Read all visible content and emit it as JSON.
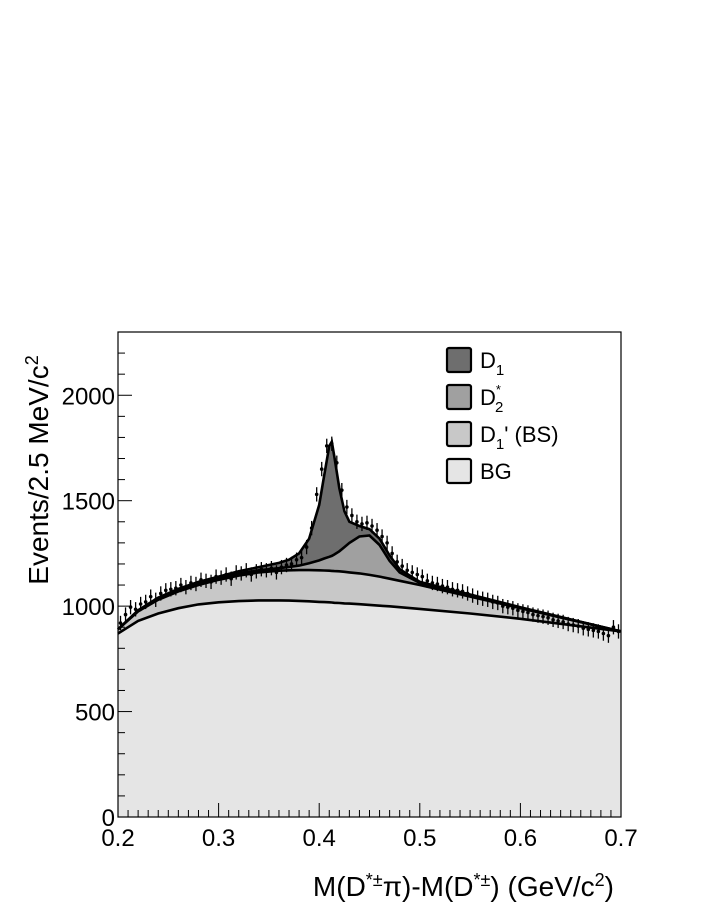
{
  "chart_data": {
    "type": "area",
    "title": "",
    "xlabel": {
      "main": "M(D",
      "sup1": "*±",
      "mid": "π)-M(D",
      "sup2": "*±",
      "end": ") (GeV/c",
      "sup3": "2",
      "close": ")"
    },
    "ylabel": {
      "main": "Events/2.5 MeV/c",
      "sup": "2"
    },
    "xlim": [
      0.2,
      0.7
    ],
    "ylim": [
      0,
      2300
    ],
    "x_ticks": [
      "0.2",
      "0.3",
      "0.4",
      "0.5",
      "0.6",
      "0.7"
    ],
    "y_ticks": [
      "0",
      "500",
      "1000",
      "1500",
      "2000"
    ],
    "x": [
      0.2,
      0.22,
      0.24,
      0.26,
      0.28,
      0.3,
      0.32,
      0.34,
      0.36,
      0.37,
      0.38,
      0.39,
      0.4,
      0.405,
      0.41,
      0.4125,
      0.415,
      0.42,
      0.425,
      0.43,
      0.44,
      0.45,
      0.46,
      0.47,
      0.48,
      0.5,
      0.55,
      0.6,
      0.65,
      0.7
    ],
    "series": [
      {
        "name": "BG",
        "color": "#e5e5e5",
        "values": [
          870,
          930,
          965,
          990,
          1008,
          1018,
          1024,
          1027,
          1027,
          1026,
          1025,
          1023,
          1020,
          1019,
          1018,
          1017,
          1016,
          1015,
          1013,
          1012,
          1009,
          1006,
          1002,
          999,
          995,
          987,
          965,
          940,
          910,
          880
        ]
      },
      {
        "name": "D1' (BS)",
        "color": "#c8c8c8",
        "values": [
          890,
          975,
          1030,
          1070,
          1100,
          1125,
          1145,
          1160,
          1168,
          1170,
          1171,
          1171,
          1170,
          1169,
          1168,
          1167,
          1166,
          1165,
          1163,
          1160,
          1155,
          1148,
          1140,
          1130,
          1120,
          1100,
          1045,
          990,
          935,
          880
        ]
      },
      {
        "name": "D2*",
        "color": "#a0a0a0",
        "values": [
          890,
          978,
          1035,
          1076,
          1107,
          1132,
          1154,
          1170,
          1180,
          1186,
          1192,
          1203,
          1217,
          1226,
          1234,
          1238,
          1245,
          1260,
          1280,
          1300,
          1330,
          1335,
          1290,
          1215,
          1160,
          1110,
          1050,
          993,
          936,
          880
        ]
      },
      {
        "name": "D1",
        "color": "#6e6e6e",
        "values": [
          890,
          980,
          1040,
          1082,
          1115,
          1140,
          1165,
          1185,
          1205,
          1220,
          1250,
          1320,
          1480,
          1620,
          1760,
          1780,
          1710,
          1560,
          1450,
          1400,
          1380,
          1365,
          1320,
          1240,
          1175,
          1115,
          1055,
          995,
          937,
          880
        ]
      }
    ],
    "legend": {
      "position": "top-right",
      "entries": [
        {
          "label": "D",
          "sub": "1",
          "sup": "",
          "rest": "",
          "color": "#6e6e6e"
        },
        {
          "label": "D",
          "sub": "2",
          "sup": "*",
          "rest": "",
          "color": "#a0a0a0"
        },
        {
          "label": "D",
          "sub": "1",
          "sup": "",
          "rest": "' (BS)",
          "color": "#c8c8c8"
        },
        {
          "label": "BG",
          "sub": "",
          "sup": "",
          "rest": "",
          "color": "#e5e5e5"
        }
      ]
    },
    "data_points_description": "",
    "data_points": {
      "x": [
        0.2025,
        0.2075,
        0.2125,
        0.2175,
        0.2225,
        0.2275,
        0.2325,
        0.2375,
        0.2425,
        0.2475,
        0.2525,
        0.2575,
        0.2625,
        0.2675,
        0.2725,
        0.2775,
        0.2825,
        0.2875,
        0.2925,
        0.2975,
        0.3025,
        0.3075,
        0.3125,
        0.3175,
        0.3225,
        0.3275,
        0.3325,
        0.3375,
        0.3425,
        0.3475,
        0.3525,
        0.3575,
        0.3625,
        0.3675,
        0.3725,
        0.3775,
        0.3825,
        0.3875,
        0.3925,
        0.3975,
        0.4025,
        0.4075,
        0.4125,
        0.4175,
        0.4225,
        0.4275,
        0.4325,
        0.4375,
        0.4425,
        0.4475,
        0.4525,
        0.4575,
        0.4625,
        0.4675,
        0.4725,
        0.4775,
        0.4825,
        0.4875,
        0.4925,
        0.4975,
        0.5025,
        0.5075,
        0.5125,
        0.5175,
        0.5225,
        0.5275,
        0.5325,
        0.5375,
        0.5425,
        0.5475,
        0.5525,
        0.5575,
        0.5625,
        0.5675,
        0.5725,
        0.5775,
        0.5825,
        0.5875,
        0.5925,
        0.5975,
        0.6025,
        0.6075,
        0.6125,
        0.6175,
        0.6225,
        0.6275,
        0.6325,
        0.6375,
        0.6425,
        0.6475,
        0.6525,
        0.6575,
        0.6625,
        0.6675,
        0.6725,
        0.6775,
        0.6825,
        0.6875,
        0.6925,
        0.6975
      ],
      "y": [
        920,
        960,
        995,
        985,
        1010,
        1020,
        1045,
        1030,
        1060,
        1075,
        1080,
        1085,
        1100,
        1090,
        1110,
        1105,
        1125,
        1120,
        1115,
        1140,
        1135,
        1150,
        1130,
        1160,
        1155,
        1170,
        1150,
        1165,
        1175,
        1170,
        1180,
        1160,
        1185,
        1195,
        1200,
        1220,
        1230,
        1280,
        1370,
        1530,
        1650,
        1760,
        1770,
        1680,
        1550,
        1470,
        1430,
        1400,
        1390,
        1395,
        1380,
        1360,
        1330,
        1300,
        1250,
        1210,
        1190,
        1170,
        1160,
        1150,
        1140,
        1120,
        1110,
        1105,
        1095,
        1090,
        1080,
        1075,
        1070,
        1060,
        1050,
        1040,
        1035,
        1030,
        1020,
        1015,
        1000,
        995,
        990,
        980,
        975,
        970,
        960,
        955,
        950,
        945,
        935,
        930,
        925,
        915,
        910,
        905,
        895,
        890,
        885,
        880,
        870,
        860,
        900,
        880
      ],
      "err": 34
    }
  }
}
